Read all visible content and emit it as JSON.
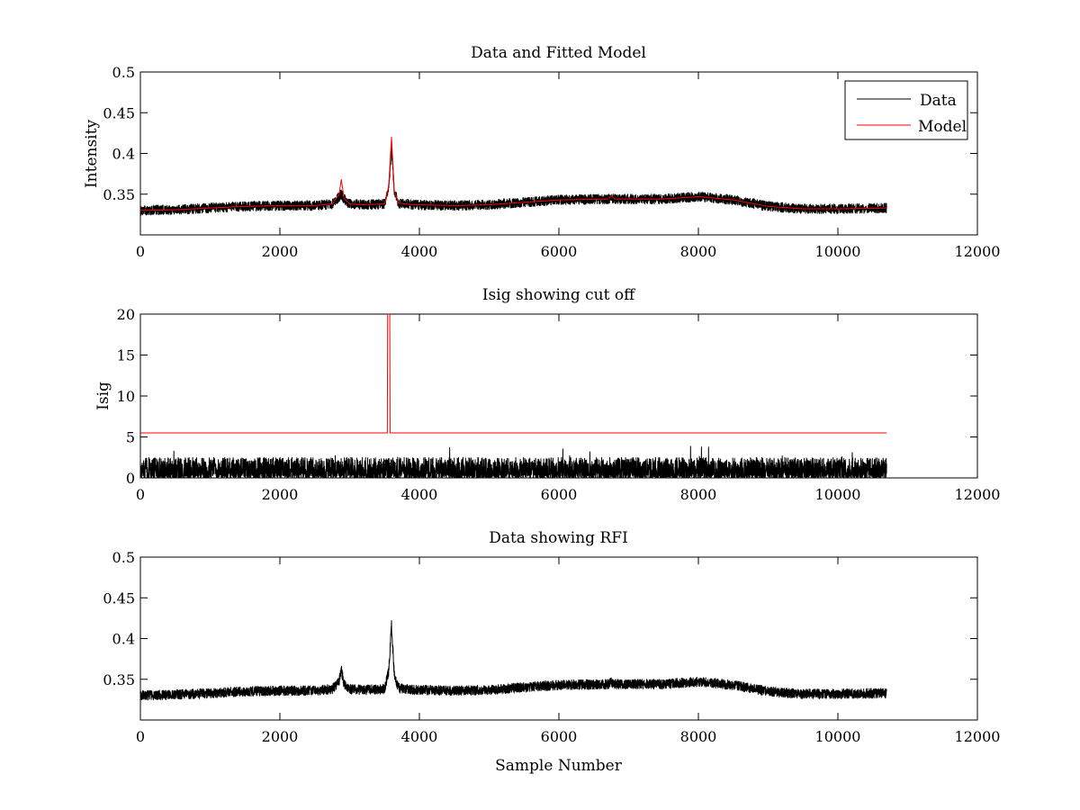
{
  "figure": {
    "background": "#ffffff",
    "line_colors": {
      "data": "#000000",
      "model": "#ff0000"
    }
  },
  "chart_data": [
    {
      "type": "line",
      "title": "Data and Fitted Model",
      "xlabel": "",
      "ylabel": "Intensity",
      "xlim": [
        0,
        12000
      ],
      "ylim": [
        0.3,
        0.5
      ],
      "xticks": [
        0,
        2000,
        4000,
        6000,
        8000,
        10000,
        12000
      ],
      "xtick_labels": [
        "0",
        "2000",
        "4000",
        "6000",
        "8000",
        "10000",
        "12000"
      ],
      "yticks": [
        0.35,
        0.4,
        0.45,
        0.5
      ],
      "ytick_labels": [
        "0.35",
        "0.4",
        "0.45",
        "0.5"
      ],
      "grid": false,
      "legend": {
        "placement": "top-right",
        "entries": [
          "Data",
          "Model"
        ]
      },
      "series": [
        {
          "name": "Data",
          "color": "#000000",
          "sample_count": 10700,
          "noise_halfwidth": 0.006,
          "x": [
            0,
            500,
            1000,
            1500,
            2000,
            2500,
            2750,
            2850,
            2880,
            2920,
            3000,
            3200,
            3500,
            3560,
            3600,
            3640,
            3700,
            3900,
            4500,
            5000,
            5500,
            6000,
            6700,
            6750,
            6800,
            7500,
            8000,
            8500,
            9000,
            9500,
            10000,
            10700
          ],
          "y": [
            0.33,
            0.331,
            0.333,
            0.335,
            0.336,
            0.336,
            0.338,
            0.347,
            0.35,
            0.344,
            0.338,
            0.337,
            0.338,
            0.36,
            0.405,
            0.355,
            0.339,
            0.337,
            0.336,
            0.337,
            0.34,
            0.343,
            0.344,
            0.346,
            0.344,
            0.344,
            0.347,
            0.343,
            0.335,
            0.332,
            0.332,
            0.333
          ]
        },
        {
          "name": "Model",
          "color": "#ff0000",
          "x": [
            0,
            500,
            1000,
            1500,
            2000,
            2500,
            2750,
            2850,
            2880,
            2920,
            3000,
            3200,
            3500,
            3560,
            3600,
            3640,
            3700,
            3900,
            4500,
            5000,
            5500,
            6000,
            6700,
            6750,
            6800,
            7500,
            8000,
            8500,
            9000,
            9500,
            10000,
            10700
          ],
          "y": [
            0.33,
            0.331,
            0.333,
            0.335,
            0.336,
            0.336,
            0.338,
            0.35,
            0.368,
            0.345,
            0.338,
            0.337,
            0.338,
            0.36,
            0.42,
            0.355,
            0.339,
            0.337,
            0.336,
            0.337,
            0.34,
            0.343,
            0.344,
            0.348,
            0.344,
            0.344,
            0.347,
            0.343,
            0.335,
            0.332,
            0.332,
            0.333
          ]
        }
      ]
    },
    {
      "type": "line",
      "title": "Isig showing cut off",
      "xlabel": "",
      "ylabel": "Isig",
      "xlim": [
        0,
        12000
      ],
      "ylim": [
        0,
        20
      ],
      "xticks": [
        0,
        2000,
        4000,
        6000,
        8000,
        10000,
        12000
      ],
      "xtick_labels": [
        "0",
        "2000",
        "4000",
        "6000",
        "8000",
        "10000",
        "12000"
      ],
      "yticks": [
        0,
        5,
        10,
        15,
        20
      ],
      "ytick_labels": [
        "0",
        "5",
        "10",
        "15",
        "20"
      ],
      "grid": false,
      "series": [
        {
          "color": "#000000",
          "sample_count": 10700,
          "typical_max": 2.5,
          "peak_max": 4.2
        },
        {
          "color": "#ff0000",
          "x": [
            0,
            3540,
            3545,
            3575,
            3580,
            10700
          ],
          "y": [
            5.5,
            5.5,
            20,
            20,
            5.5,
            5.5
          ]
        }
      ]
    },
    {
      "type": "line",
      "title": "Data showing RFI",
      "xlabel": "Sample Number",
      "ylabel": "",
      "xlim": [
        0,
        12000
      ],
      "ylim": [
        0.3,
        0.5
      ],
      "xticks": [
        0,
        2000,
        4000,
        6000,
        8000,
        10000,
        12000
      ],
      "xtick_labels": [
        "0",
        "2000",
        "4000",
        "6000",
        "8000",
        "10000",
        "12000"
      ],
      "yticks": [
        0.35,
        0.4,
        0.45,
        0.5
      ],
      "ytick_labels": [
        "0.35",
        "0.4",
        "0.45",
        "0.5"
      ],
      "grid": false,
      "series": [
        {
          "color": "#000000",
          "sample_count": 10700,
          "noise_halfwidth": 0.006,
          "x": [
            0,
            500,
            1000,
            1500,
            2000,
            2500,
            2750,
            2850,
            2880,
            2920,
            3000,
            3200,
            3500,
            3560,
            3600,
            3640,
            3700,
            3900,
            4500,
            5000,
            5500,
            6000,
            6700,
            6750,
            6800,
            7500,
            8000,
            8500,
            9000,
            9500,
            10000,
            10700
          ],
          "y": [
            0.33,
            0.331,
            0.333,
            0.335,
            0.336,
            0.336,
            0.338,
            0.347,
            0.362,
            0.344,
            0.338,
            0.337,
            0.338,
            0.36,
            0.418,
            0.355,
            0.339,
            0.337,
            0.336,
            0.337,
            0.34,
            0.343,
            0.344,
            0.346,
            0.344,
            0.344,
            0.347,
            0.343,
            0.335,
            0.332,
            0.332,
            0.333
          ]
        }
      ]
    }
  ]
}
